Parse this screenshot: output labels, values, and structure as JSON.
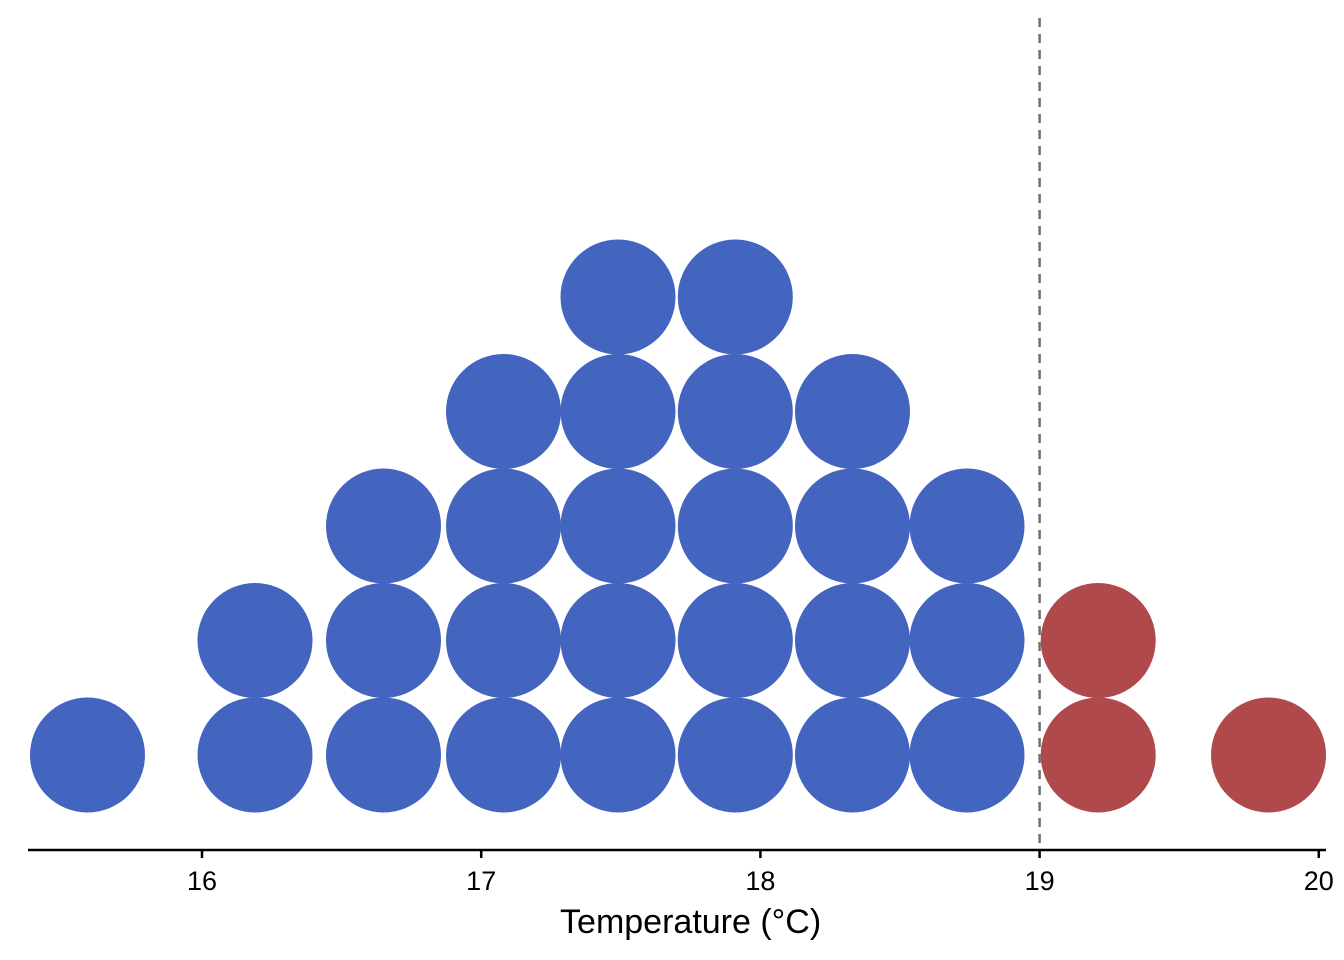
{
  "chart_data": {
    "type": "dotplot",
    "xlabel": "Temperature (°C)",
    "ylabel": "",
    "title": "",
    "xlim": [
      15.38,
      20.05
    ],
    "xticks": [
      16,
      17,
      18,
      19,
      20
    ],
    "grid": false,
    "legend": "none",
    "threshold": {
      "value": 19,
      "style": "dashed",
      "color": "#6e6e6e"
    },
    "colors": {
      "below_threshold": "#4364BF",
      "above_threshold": "#B0494B"
    },
    "stacks": [
      {
        "x": 15.59,
        "count": 1,
        "group": "below_threshold"
      },
      {
        "x": 16.19,
        "count": 2,
        "group": "below_threshold"
      },
      {
        "x": 16.65,
        "count": 3,
        "group": "below_threshold"
      },
      {
        "x": 17.08,
        "count": 4,
        "group": "below_threshold"
      },
      {
        "x": 17.49,
        "count": 5,
        "group": "below_threshold"
      },
      {
        "x": 17.91,
        "count": 5,
        "group": "below_threshold"
      },
      {
        "x": 18.33,
        "count": 4,
        "group": "below_threshold"
      },
      {
        "x": 18.74,
        "count": 3,
        "group": "below_threshold"
      },
      {
        "x": 19.21,
        "count": 2,
        "group": "above_threshold"
      },
      {
        "x": 19.82,
        "count": 1,
        "group": "above_threshold"
      }
    ]
  }
}
